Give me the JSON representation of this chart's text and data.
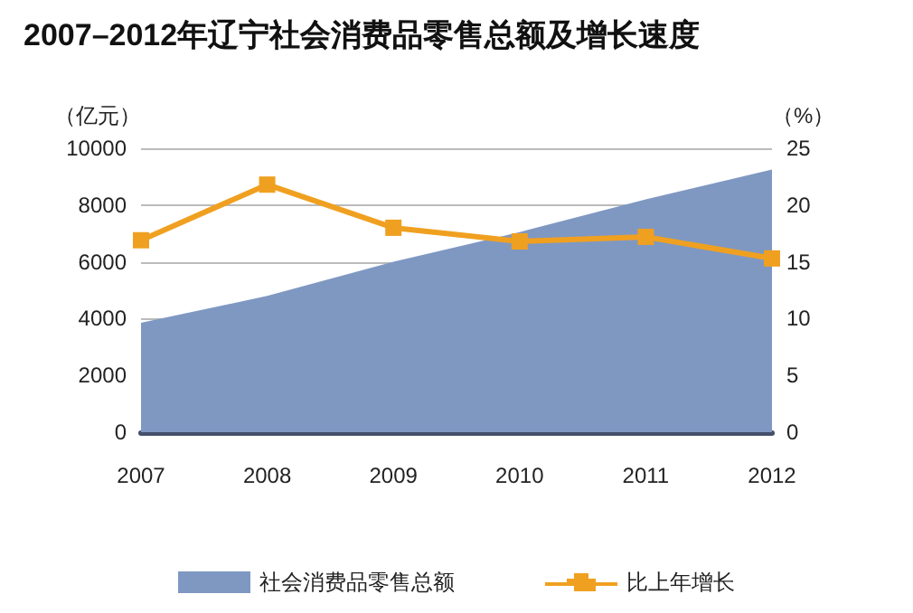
{
  "chart_data": {
    "type": "area",
    "title": "2007–2012年辽宁社会消费品零售总额及增长速度",
    "ylabel": "（亿元）",
    "y2label": "（%）",
    "categories": [
      "2007",
      "2008",
      "2009",
      "2010",
      "2011",
      "2012"
    ],
    "series": [
      {
        "name": "社会消费品零售总额",
        "color": "#7f98c2",
        "values": [
          3850,
          4800,
          6000,
          7050,
          8200,
          9250
        ]
      },
      {
        "name": "比上年增长",
        "type": "line",
        "axis": "y2",
        "color": "#f0a020",
        "marker": "square",
        "values": [
          16.9,
          21.8,
          18.0,
          16.8,
          17.2,
          15.3
        ]
      }
    ],
    "ylim": [
      0,
      10000
    ],
    "yticks": [
      0,
      2000,
      4000,
      6000,
      8000,
      10000
    ],
    "y2lim": [
      0,
      25
    ],
    "y2ticks": [
      0,
      5,
      10,
      15,
      20,
      25
    ],
    "grid": "y",
    "legend": "bottom"
  }
}
